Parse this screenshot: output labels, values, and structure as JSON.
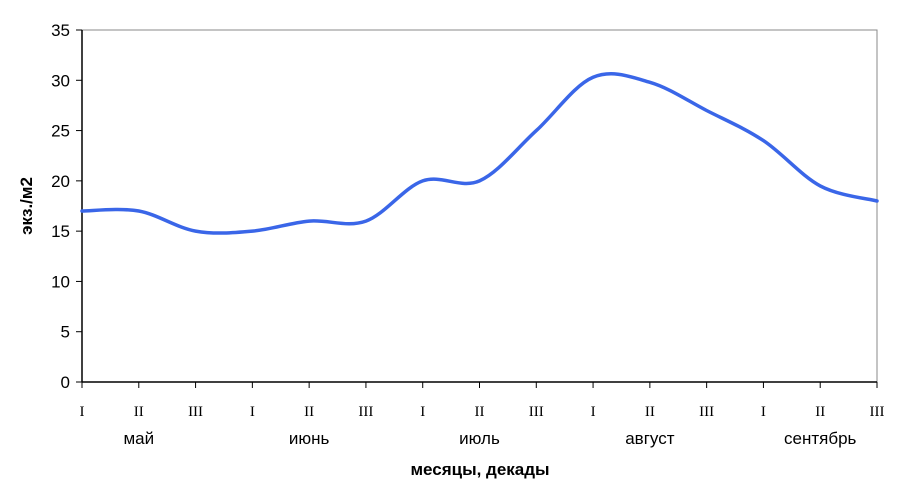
{
  "chart_data": {
    "type": "line",
    "title": "",
    "ylabel": "экз./м2",
    "xlabel": "месяцы, декады",
    "ylim": [
      0,
      35
    ],
    "yticks": [
      0,
      5,
      10,
      15,
      20,
      25,
      30,
      35
    ],
    "grid": false,
    "legend": "none",
    "line_color": "#3a66e8",
    "decade_labels": [
      "I",
      "II",
      "III",
      "I",
      "II",
      "III",
      "I",
      "II",
      "III",
      "I",
      "II",
      "III",
      "I",
      "II",
      "III"
    ],
    "months": [
      "май",
      "июнь",
      "июль",
      "август",
      "сентябрь"
    ],
    "series": [
      {
        "values": [
          17.0,
          17.0,
          15.0,
          15.0,
          16.0,
          16.0,
          20.0,
          20.0,
          25.0,
          30.3,
          29.8,
          27.0,
          24.0,
          19.5,
          18.0
        ]
      }
    ]
  }
}
